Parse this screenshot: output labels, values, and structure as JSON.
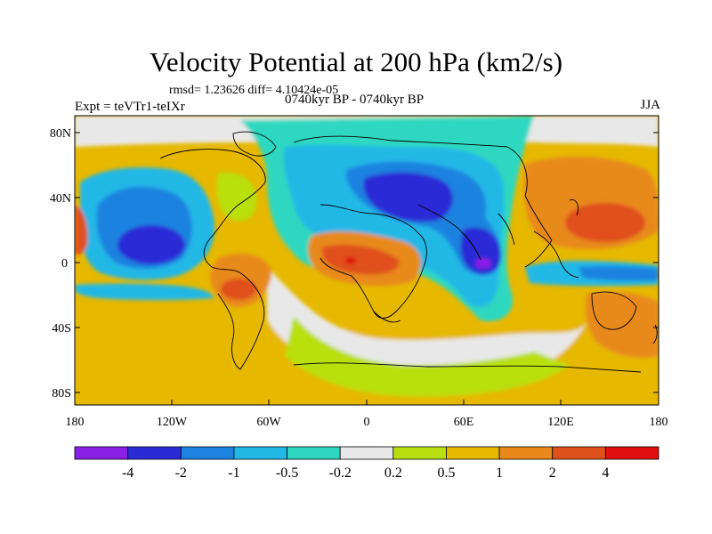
{
  "title": "Velocity Potential at 200 hPa (km2/s)",
  "stats_line": "rmsd= 1.23626 diff= 4.10424e-05",
  "experiment": "Expt = teVTr1-teIXr",
  "period": "0740kyr BP - 0740kyr BP",
  "season": "JJA",
  "map": {
    "y_tick_labels": [
      "80N",
      "40N",
      "0",
      "40S",
      "80S"
    ],
    "x_tick_labels": [
      "180",
      "120W",
      "60W",
      "0",
      "60E",
      "120E",
      "180"
    ]
  },
  "colorbar": {
    "labels": [
      "-4",
      "-2",
      "-1",
      "-0.5",
      "-0.2",
      "0.2",
      "0.5",
      "1",
      "2",
      "4"
    ],
    "colors": [
      "#8a1fe6",
      "#2b2bd6",
      "#1e82e0",
      "#22b8e6",
      "#2ed8c0",
      "#e8e8e8",
      "#b9df10",
      "#e6b800",
      "#e8891a",
      "#e0501a",
      "#e01010"
    ]
  }
}
